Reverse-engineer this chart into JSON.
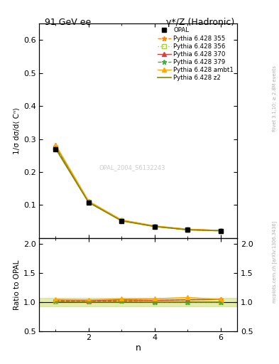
{
  "title_left": "91 GeV ee",
  "title_right": "γ*/Z (Hadronic)",
  "xlabel": "n",
  "ylabel_main": "1/σ dσ/d⟨ Cⁿ⟩",
  "ylabel_ratio": "Ratio to OPAL",
  "watermark": "OPAL_2004_S6132243",
  "right_label_top": "Rivet 3.1.10; ≥ 2.8M events",
  "right_label_bottom": "mcplots.cern.ch [arXiv:1306.3436]",
  "x_values": [
    1,
    2,
    3,
    4,
    5,
    6
  ],
  "opal_y": [
    0.27,
    0.108,
    0.052,
    0.035,
    0.025,
    0.022
  ],
  "opal_errors": [
    0.005,
    0.003,
    0.002,
    0.001,
    0.001,
    0.001
  ],
  "pythia_355_y": [
    0.278,
    0.11,
    0.054,
    0.036,
    0.026,
    0.023
  ],
  "pythia_356_y": [
    0.274,
    0.109,
    0.053,
    0.035,
    0.025,
    0.022
  ],
  "pythia_370_y": [
    0.281,
    0.111,
    0.054,
    0.036,
    0.026,
    0.023
  ],
  "pythia_379_y": [
    0.275,
    0.109,
    0.053,
    0.035,
    0.025,
    0.022
  ],
  "pythia_ambt1_y": [
    0.283,
    0.112,
    0.055,
    0.037,
    0.027,
    0.023
  ],
  "pythia_z2_y": [
    0.271,
    0.108,
    0.052,
    0.035,
    0.025,
    0.022
  ],
  "color_355": "#ff8800",
  "color_356": "#aacc44",
  "color_370": "#cc4444",
  "color_379": "#44aa44",
  "color_ambt1": "#ffaa00",
  "color_z2": "#888800",
  "color_opal": "#000000",
  "ylim_main": [
    0.0,
    0.65
  ],
  "ylim_ratio": [
    0.5,
    2.1
  ],
  "yticks_main": [
    0.1,
    0.2,
    0.3,
    0.4,
    0.5,
    0.6
  ],
  "yticks_ratio": [
    0.5,
    1.0,
    1.5,
    2.0
  ],
  "xlim": [
    0.5,
    6.5
  ],
  "xticks_major": [
    2,
    4,
    6
  ],
  "xticks_minor": [
    1,
    3,
    5
  ],
  "background_color": "#ffffff",
  "legend_labels": [
    "OPAL",
    "Pythia 6.428 355",
    "Pythia 6.428 356",
    "Pythia 6.428 370",
    "Pythia 6.428 379",
    "Pythia 6.428 ambt1",
    "Pythia 6.428 z2"
  ]
}
